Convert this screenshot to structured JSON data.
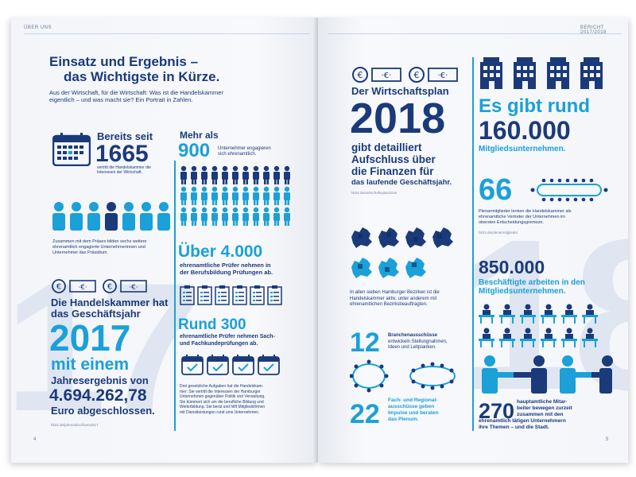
{
  "left": {
    "header": "ÜBER UNS",
    "page_number": "4",
    "title_line1": "Einsatz und Ergebnis –",
    "title_line2": "das Wichtigste in Kürze.",
    "intro_line1": "Aus der Wirtschaft, für die Wirtschaft: Was ist die Handelskammer",
    "intro_line2": "eigentlich – und was macht sie? Ein Portrait in Zahlen.",
    "bg_number": "17",
    "since": {
      "label": "Bereits seit",
      "year": "1665",
      "text_line1": "vertritt die Handelskammer die",
      "text_line2": "Interessen der Wirtschaft."
    },
    "presidium": {
      "text_line1": "Zusammen mit dem Präses bilden sechs weitere",
      "text_line2": "ehrenamtlich engagierte Unternehmerinnen und",
      "text_line3": "Unternehmer das Präsidium."
    },
    "volunteers": {
      "label": "Mehr als",
      "number": "900",
      "text_line1": "Unternehmer engagieren",
      "text_line2": "sich ehrenamtlich."
    },
    "examiners": {
      "number": "Über 4.000",
      "text_line1": "ehrenamtliche Prüfer nehmen in",
      "text_line2": "der Berufsbildung Prüfungen ab."
    },
    "result": {
      "line1": "Die Handelskammer hat",
      "line2": "das Geschäftsjahr",
      "year": "2017",
      "line3": "mit einem",
      "line4": "Jahresergebnis von",
      "amount": "4.694.262,78",
      "line5": "Euro abgeschlossen.",
      "source": "hk24.de/jahresabschluss2017"
    },
    "committees": {
      "number": "Rund 300",
      "text_line1": "ehrenamtliche Prüfer nehmen Sach-",
      "text_line2": "und Fachkundeprüfungen ab."
    },
    "tasks": {
      "text_line1": "Drei gesetzliche Aufgaben hat die Handelskam-",
      "text_line2": "mer: Sie vertritt die Interessen der Hamburger",
      "text_line3": "Unternehmen gegenüber Politik und Verwaltung.",
      "text_line4": "Sie kümmert sich um die berufliche Bildung und",
      "text_line5": "Weiterbildung. Sie berät und hilft Mitgliedsfirmen",
      "text_line6": "mit Dienstleistungen rund ums Unternehmen."
    }
  },
  "right": {
    "header": "BERICHT 2017/2018",
    "page_number": "5",
    "bg_number": "18",
    "plan": {
      "line1": "Der Wirtschaftsplan",
      "year": "2018",
      "line2": "gibt detailliert",
      "line3": "Aufschluss über",
      "line4": "die Finanzen für",
      "line5": "das laufende Geschäftsjahr.",
      "source": "hk24.de/wirtschaftsplan2018"
    },
    "members": {
      "line1": "Es gibt rund",
      "number": "160.000",
      "line2": "Mitgliedsunternehmen."
    },
    "plenum": {
      "number": "66",
      "text_line1": "Plenarmitglieder lenken die Handelskammer als",
      "text_line2": "ehrenamtliche Vertreter der Unternehmen im",
      "text_line3": "obersten Entscheidungsgremium.",
      "source": "hk24.de/plenarmitglieder"
    },
    "districts": {
      "text_line1": "In allen sieben Hamburger Bezirken ist die",
      "text_line2": "Handelskammer aktiv, unter anderem mit",
      "text_line3": "ehrenamtlichen Bezirksbeauftragten."
    },
    "employees": {
      "number": "850.000",
      "text_line1": "Beschäftigte arbeiten in den",
      "text_line2": "Mitgliedsunternehmen."
    },
    "branch": {
      "number": "12",
      "text_line1": "Branchenausschüsse",
      "text_line2": "entwickeln Stellungnahmen,",
      "text_line3": "Ideen und Leitplanken."
    },
    "regional": {
      "number": "22",
      "text_line1": "Fach- und Regional-",
      "text_line2": "ausschüsse geben",
      "text_line3": "Impulse und beraten",
      "text_line4": "das Plenum."
    },
    "staff": {
      "number": "270",
      "text_line1": "hauptamtliche Mitar-",
      "text_line2": "beiter bewegen zurzeit",
      "text_line3": "zusammen mit den",
      "text_line4": "ehrenamtlich tätigen Unternehmern",
      "text_line5": "ihre Themen – und die Stadt."
    }
  },
  "colors": {
    "navy": "#1b3a7a",
    "cyan": "#1ba0d8",
    "light": "#dfe6f2"
  },
  "icons": [
    "calendar-icon",
    "people-icon",
    "euro-note-icon",
    "clipboard-icon",
    "building-icon",
    "map-icon",
    "table-icon",
    "handshake-icon"
  ]
}
